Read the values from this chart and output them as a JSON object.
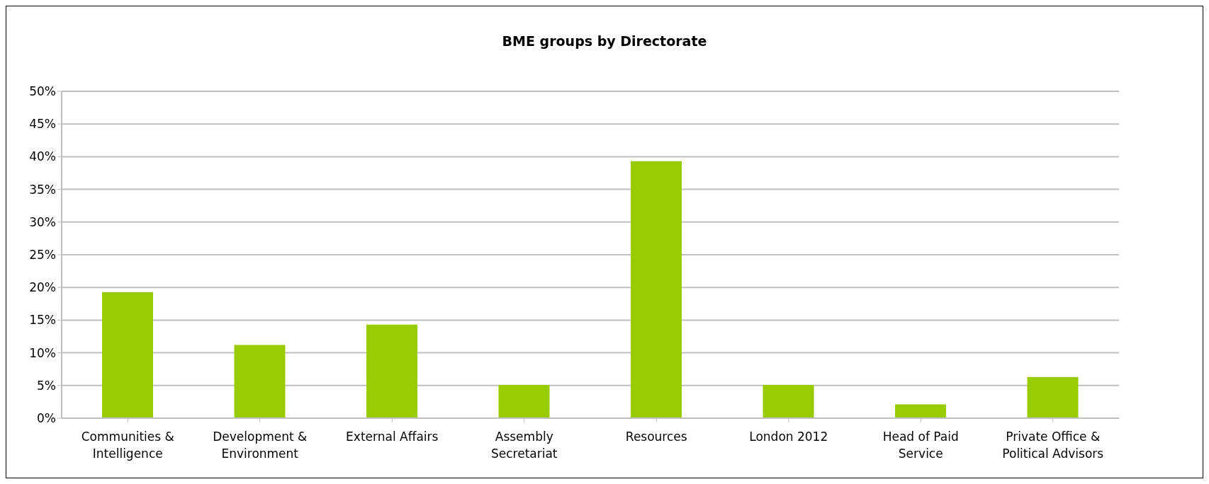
{
  "chart_data": {
    "type": "bar",
    "title": "BME groups by Directorate",
    "categories": [
      "Communities & Intelligence",
      "Development & Environment",
      "External Affairs",
      "Assembly Secretariat",
      "Resources",
      "London 2012",
      "Head of Paid Service",
      "Private Office & Political Advisors"
    ],
    "values": [
      19.3,
      11.2,
      14.3,
      5.1,
      39.3,
      5.1,
      2.1,
      6.3
    ],
    "color": "#99cc00",
    "ylim": [
      0,
      50
    ],
    "yticks": [
      {
        "value": 0,
        "label": "0%"
      },
      {
        "value": 5,
        "label": "5%"
      },
      {
        "value": 10,
        "label": "10%"
      },
      {
        "value": 15,
        "label": "15%"
      },
      {
        "value": 20,
        "label": "20%"
      },
      {
        "value": 25,
        "label": "25%"
      },
      {
        "value": 30,
        "label": "30%"
      },
      {
        "value": 35,
        "label": "35%"
      },
      {
        "value": 40,
        "label": "40%"
      },
      {
        "value": 45,
        "label": "45%"
      },
      {
        "value": 50,
        "label": "50%"
      }
    ],
    "grid": "y"
  }
}
